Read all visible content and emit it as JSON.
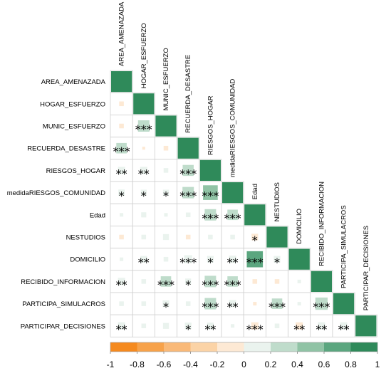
{
  "chart_data": {
    "type": "heatmap",
    "subtype": "correlation-upper-triangle",
    "variables": [
      "AREA_AMENAZADA",
      "HOGAR_ESFUERZO",
      "MUNIC_ESFUERZO",
      "RECUERDA_DESASTRE",
      "RIESGOS_HOGAR",
      "medidaRIESGOS_COMUNIDAD",
      "Edad",
      "NESTUDIOS",
      "DOMICILIO",
      "RECIBIDO_INFORMACION",
      "PARTICIPA_SIMULACROS",
      "PARTICIPAR_DECISIONES"
    ],
    "cells": [
      {
        "row": 1,
        "col": 0,
        "r": -0.05,
        "sig": ""
      },
      {
        "row": 2,
        "col": 0,
        "r": -0.05,
        "sig": ""
      },
      {
        "row": 2,
        "col": 1,
        "r": 0.3,
        "sig": "***"
      },
      {
        "row": 3,
        "col": 0,
        "r": 0.25,
        "sig": "***"
      },
      {
        "row": 3,
        "col": 1,
        "r": -0.02,
        "sig": ""
      },
      {
        "row": 3,
        "col": 2,
        "r": -0.05,
        "sig": ""
      },
      {
        "row": 4,
        "col": 0,
        "r": 0.12,
        "sig": "**"
      },
      {
        "row": 4,
        "col": 1,
        "r": 0.12,
        "sig": "**"
      },
      {
        "row": 4,
        "col": 2,
        "r": 0.05,
        "sig": ""
      },
      {
        "row": 4,
        "col": 3,
        "r": 0.28,
        "sig": "***"
      },
      {
        "row": 5,
        "col": 0,
        "r": 0.09,
        "sig": "*"
      },
      {
        "row": 5,
        "col": 1,
        "r": 0.08,
        "sig": "*"
      },
      {
        "row": 5,
        "col": 2,
        "r": 0.08,
        "sig": "*"
      },
      {
        "row": 5,
        "col": 3,
        "r": 0.3,
        "sig": "***"
      },
      {
        "row": 5,
        "col": 4,
        "r": 0.5,
        "sig": "***"
      },
      {
        "row": 6,
        "col": 0,
        "r": 0.03,
        "sig": ""
      },
      {
        "row": 6,
        "col": 1,
        "r": 0.06,
        "sig": ""
      },
      {
        "row": 6,
        "col": 2,
        "r": 0.03,
        "sig": ""
      },
      {
        "row": 6,
        "col": 3,
        "r": 0.05,
        "sig": ""
      },
      {
        "row": 6,
        "col": 4,
        "r": 0.3,
        "sig": "***"
      },
      {
        "row": 6,
        "col": 5,
        "r": 0.25,
        "sig": "***"
      },
      {
        "row": 7,
        "col": 0,
        "r": -0.05,
        "sig": ""
      },
      {
        "row": 7,
        "col": 1,
        "r": 0.05,
        "sig": ""
      },
      {
        "row": 7,
        "col": 2,
        "r": 0.08,
        "sig": ""
      },
      {
        "row": 7,
        "col": 3,
        "r": -0.05,
        "sig": ""
      },
      {
        "row": 7,
        "col": 4,
        "r": 0.05,
        "sig": ""
      },
      {
        "row": 7,
        "col": 5,
        "r": 0.05,
        "sig": ""
      },
      {
        "row": 7,
        "col": 6,
        "r": -0.1,
        "sig": "*"
      },
      {
        "row": 8,
        "col": 0,
        "r": 0.03,
        "sig": ""
      },
      {
        "row": 8,
        "col": 1,
        "r": 0.1,
        "sig": "**"
      },
      {
        "row": 8,
        "col": 2,
        "r": 0.05,
        "sig": ""
      },
      {
        "row": 8,
        "col": 3,
        "r": 0.15,
        "sig": "***"
      },
      {
        "row": 8,
        "col": 4,
        "r": 0.1,
        "sig": "*"
      },
      {
        "row": 8,
        "col": 5,
        "r": 0.12,
        "sig": "**"
      },
      {
        "row": 8,
        "col": 6,
        "r": 0.6,
        "sig": "***"
      },
      {
        "row": 8,
        "col": 7,
        "r": 0.1,
        "sig": "*"
      },
      {
        "row": 9,
        "col": 0,
        "r": 0.12,
        "sig": "**"
      },
      {
        "row": 9,
        "col": 1,
        "r": 0.05,
        "sig": ""
      },
      {
        "row": 9,
        "col": 2,
        "r": 0.25,
        "sig": "***"
      },
      {
        "row": 9,
        "col": 3,
        "r": 0.08,
        "sig": "*"
      },
      {
        "row": 9,
        "col": 4,
        "r": 0.3,
        "sig": "***"
      },
      {
        "row": 9,
        "col": 5,
        "r": 0.25,
        "sig": "***"
      },
      {
        "row": 9,
        "col": 6,
        "r": -0.05,
        "sig": ""
      },
      {
        "row": 9,
        "col": 7,
        "r": -0.05,
        "sig": ""
      },
      {
        "row": 9,
        "col": 8,
        "r": 0.03,
        "sig": ""
      },
      {
        "row": 10,
        "col": 0,
        "r": 0.05,
        "sig": ""
      },
      {
        "row": 10,
        "col": 1,
        "r": 0.05,
        "sig": ""
      },
      {
        "row": 10,
        "col": 2,
        "r": 0.1,
        "sig": "*"
      },
      {
        "row": 10,
        "col": 3,
        "r": 0.05,
        "sig": ""
      },
      {
        "row": 10,
        "col": 4,
        "r": 0.3,
        "sig": "***"
      },
      {
        "row": 10,
        "col": 5,
        "r": 0.12,
        "sig": "**"
      },
      {
        "row": 10,
        "col": 6,
        "r": -0.03,
        "sig": ""
      },
      {
        "row": 10,
        "col": 7,
        "r": 0.25,
        "sig": "***"
      },
      {
        "row": 10,
        "col": 8,
        "r": 0.03,
        "sig": ""
      },
      {
        "row": 10,
        "col": 9,
        "r": 0.35,
        "sig": "***"
      },
      {
        "row": 11,
        "col": 0,
        "r": 0.12,
        "sig": "**"
      },
      {
        "row": 11,
        "col": 1,
        "r": 0.05,
        "sig": ""
      },
      {
        "row": 11,
        "col": 2,
        "r": 0.08,
        "sig": ""
      },
      {
        "row": 11,
        "col": 3,
        "r": 0.1,
        "sig": "*"
      },
      {
        "row": 11,
        "col": 4,
        "r": 0.1,
        "sig": "**"
      },
      {
        "row": 11,
        "col": 5,
        "r": 0.03,
        "sig": ""
      },
      {
        "row": 11,
        "col": 6,
        "r": -0.12,
        "sig": "***"
      },
      {
        "row": 11,
        "col": 7,
        "r": 0.05,
        "sig": ""
      },
      {
        "row": 11,
        "col": 8,
        "r": -0.12,
        "sig": "**"
      },
      {
        "row": 11,
        "col": 9,
        "r": 0.12,
        "sig": "**"
      },
      {
        "row": 11,
        "col": 10,
        "r": 0.12,
        "sig": "**"
      }
    ],
    "diagonal_r": 1,
    "colorbar": {
      "ticks": [
        "-1",
        "-0.8",
        "-0.6",
        "-0.4",
        "-0.2",
        "0",
        "0.2",
        "0.4",
        "0.6",
        "0.8",
        "1"
      ],
      "range": [
        -1,
        1
      ],
      "colors": [
        "#f58a1f",
        "#f7a24a",
        "#f9b978",
        "#fbd3a6",
        "#fde9d4",
        "#eaf3ee",
        "#bfdccb",
        "#90c3a5",
        "#5ba67f",
        "#2f8a5a"
      ]
    },
    "title": "",
    "xlabel": "",
    "ylabel": ""
  }
}
